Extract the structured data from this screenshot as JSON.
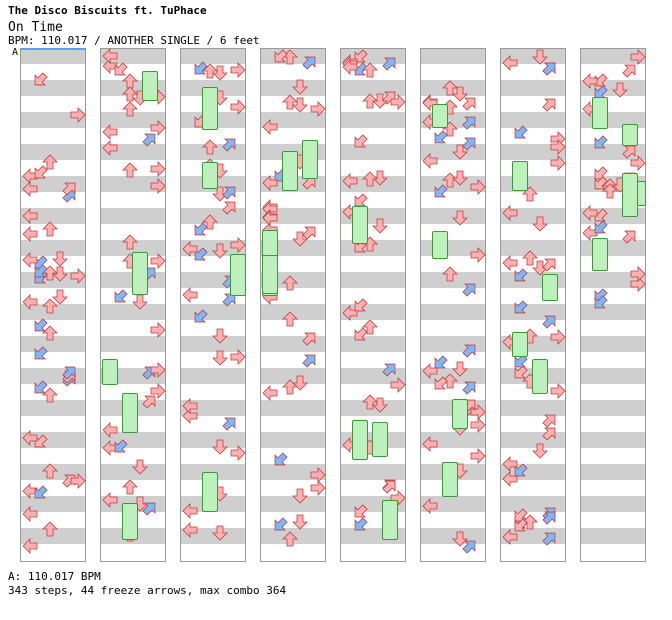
{
  "header": {
    "artist": "The Disco Biscuits ft. TuPhace",
    "title": "On Time",
    "meta": "BPM: 110.017 / ANOTHER SINGLE / 6 feet",
    "marker": "A"
  },
  "footer": {
    "bpm_line": "A: 110.017 BPM",
    "stats_line": "343 steps, 44 freeze arrows, max combo 364"
  },
  "colors": {
    "red_arrow": "#ffb0b0",
    "blue_arrow": "#7ab8ff",
    "freeze_green": "#bdf0bd",
    "grid_band": "#cfcfcf"
  }
}
